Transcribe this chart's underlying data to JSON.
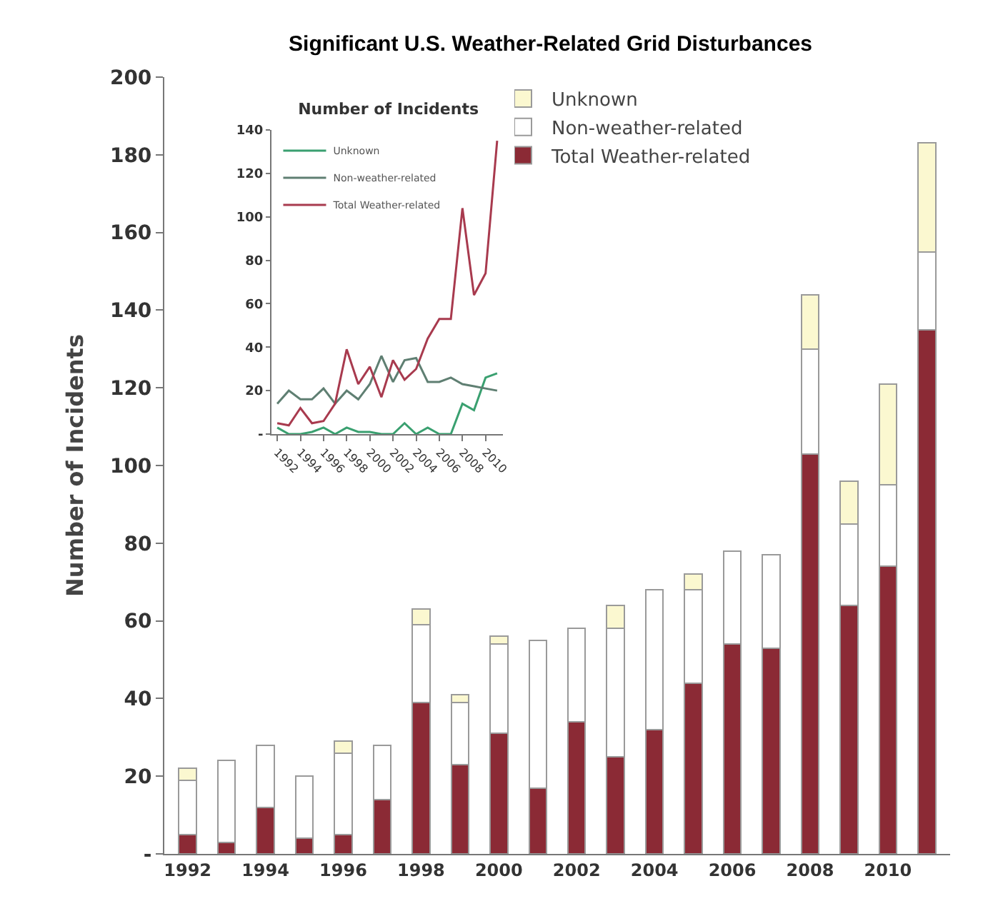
{
  "chart_data": [
    {
      "type": "bar",
      "title": "Significant U.S. Weather-Related Grid Disturbances",
      "ylabel": "Number of Incidents",
      "categories": [
        "1992",
        null,
        "1994",
        null,
        "1996",
        null,
        "1998",
        null,
        "2000",
        null,
        "2002",
        null,
        "2004",
        null,
        "2006",
        null,
        "2008",
        null,
        "2010",
        null
      ],
      "series": [
        {
          "name": "Total Weather-related",
          "color": "#8b2a35",
          "values": [
            5,
            3,
            12,
            4,
            5,
            14,
            39,
            23,
            31,
            17,
            34,
            25,
            32,
            44,
            54,
            53,
            103,
            64,
            74,
            135
          ]
        },
        {
          "name": "Non-weather-related",
          "color": "#ffffff",
          "values": [
            14,
            21,
            16,
            16,
            21,
            14,
            20,
            16,
            23,
            38,
            24,
            33,
            36,
            24,
            24,
            24,
            27,
            21,
            21,
            20
          ]
        },
        {
          "name": "Unknown",
          "color": "#fbf8d0",
          "values": [
            3,
            0,
            0,
            0,
            3,
            0,
            4,
            2,
            2,
            0,
            0,
            6,
            0,
            4,
            0,
            0,
            14,
            11,
            26,
            28
          ]
        }
      ],
      "stacked": true,
      "ylim": [
        0,
        200
      ],
      "yticks": [
        {
          "value": 0,
          "label": "-"
        },
        20,
        40,
        60,
        80,
        100,
        120,
        140,
        160,
        180,
        200
      ],
      "legend": "top right",
      "grid": false
    },
    {
      "type": "line",
      "title": "Number of Incidents",
      "x": [
        1992,
        1993,
        1994,
        1995,
        1996,
        1997,
        1998,
        1999,
        2000,
        2001,
        2002,
        2003,
        2004,
        2005,
        2006,
        2007,
        2008,
        2009,
        2010,
        2011
      ],
      "series": [
        {
          "name": "Unknown",
          "color": "#3aa070",
          "values": [
            3,
            0,
            0,
            1,
            3,
            0,
            3,
            1,
            1,
            0,
            0,
            5,
            0,
            3,
            0,
            0,
            14,
            11,
            26,
            28
          ]
        },
        {
          "name": "Non-weather-related",
          "color": "#5f7f72",
          "values": [
            14,
            20,
            16,
            16,
            21,
            14,
            20,
            16,
            23,
            36,
            24,
            34,
            35,
            24,
            24,
            26,
            23,
            22,
            21,
            20
          ]
        },
        {
          "name": "Total Weather-related",
          "color": "#a83a4e",
          "values": [
            5,
            4,
            12,
            5,
            6,
            14,
            39,
            23,
            31,
            17,
            34,
            25,
            30,
            44,
            53,
            53,
            104,
            64,
            74,
            135
          ]
        }
      ],
      "xlim": [
        1991.5,
        2011.5
      ],
      "xticks": [
        1992,
        1994,
        1996,
        1998,
        2000,
        2002,
        2004,
        2006,
        2008,
        2010
      ],
      "ylim": [
        0,
        140
      ],
      "yticks": [
        {
          "value": 0,
          "label": "-"
        },
        20,
        40,
        60,
        80,
        100,
        120,
        140
      ],
      "legend": "top left",
      "grid": false,
      "marker": "none",
      "line_style": "solid"
    }
  ]
}
